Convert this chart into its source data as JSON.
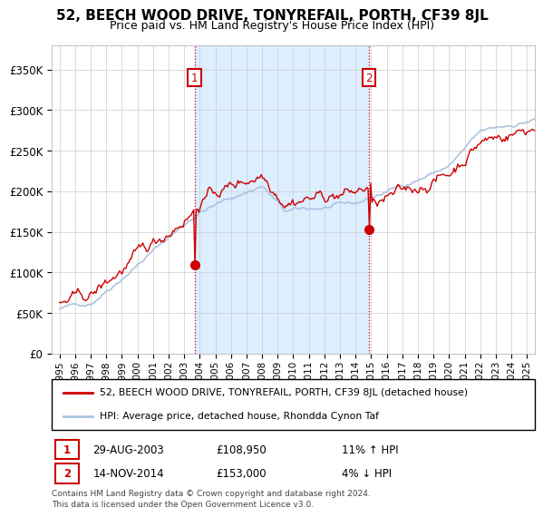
{
  "title": "52, BEECH WOOD DRIVE, TONYREFAIL, PORTH, CF39 8JL",
  "subtitle": "Price paid vs. HM Land Registry's House Price Index (HPI)",
  "legend_line1": "52, BEECH WOOD DRIVE, TONYREFAIL, PORTH, CF39 8JL (detached house)",
  "legend_line2": "HPI: Average price, detached house, Rhondda Cynon Taf",
  "annotation1_date": "29-AUG-2003",
  "annotation1_price": "£108,950",
  "annotation1_hpi": "11% ↑ HPI",
  "annotation2_date": "14-NOV-2014",
  "annotation2_price": "£153,000",
  "annotation2_hpi": "4% ↓ HPI",
  "footer": "Contains HM Land Registry data © Crown copyright and database right 2024.\nThis data is licensed under the Open Government Licence v3.0.",
  "sale1_year": 2003.66,
  "sale1_price": 108950,
  "sale2_year": 2014.87,
  "sale2_price": 153000,
  "red_line_color": "#cc0000",
  "blue_line_color": "#aac4e0",
  "shade_color": "#ddeeff",
  "vline_color": "#cc0000",
  "annotation_box_color": "#cc0000",
  "grid_color": "#cccccc",
  "background_color": "#ffffff",
  "ylim_min": 0,
  "ylim_max": 380000,
  "xlim_min": 1994.5,
  "xlim_max": 2025.5
}
